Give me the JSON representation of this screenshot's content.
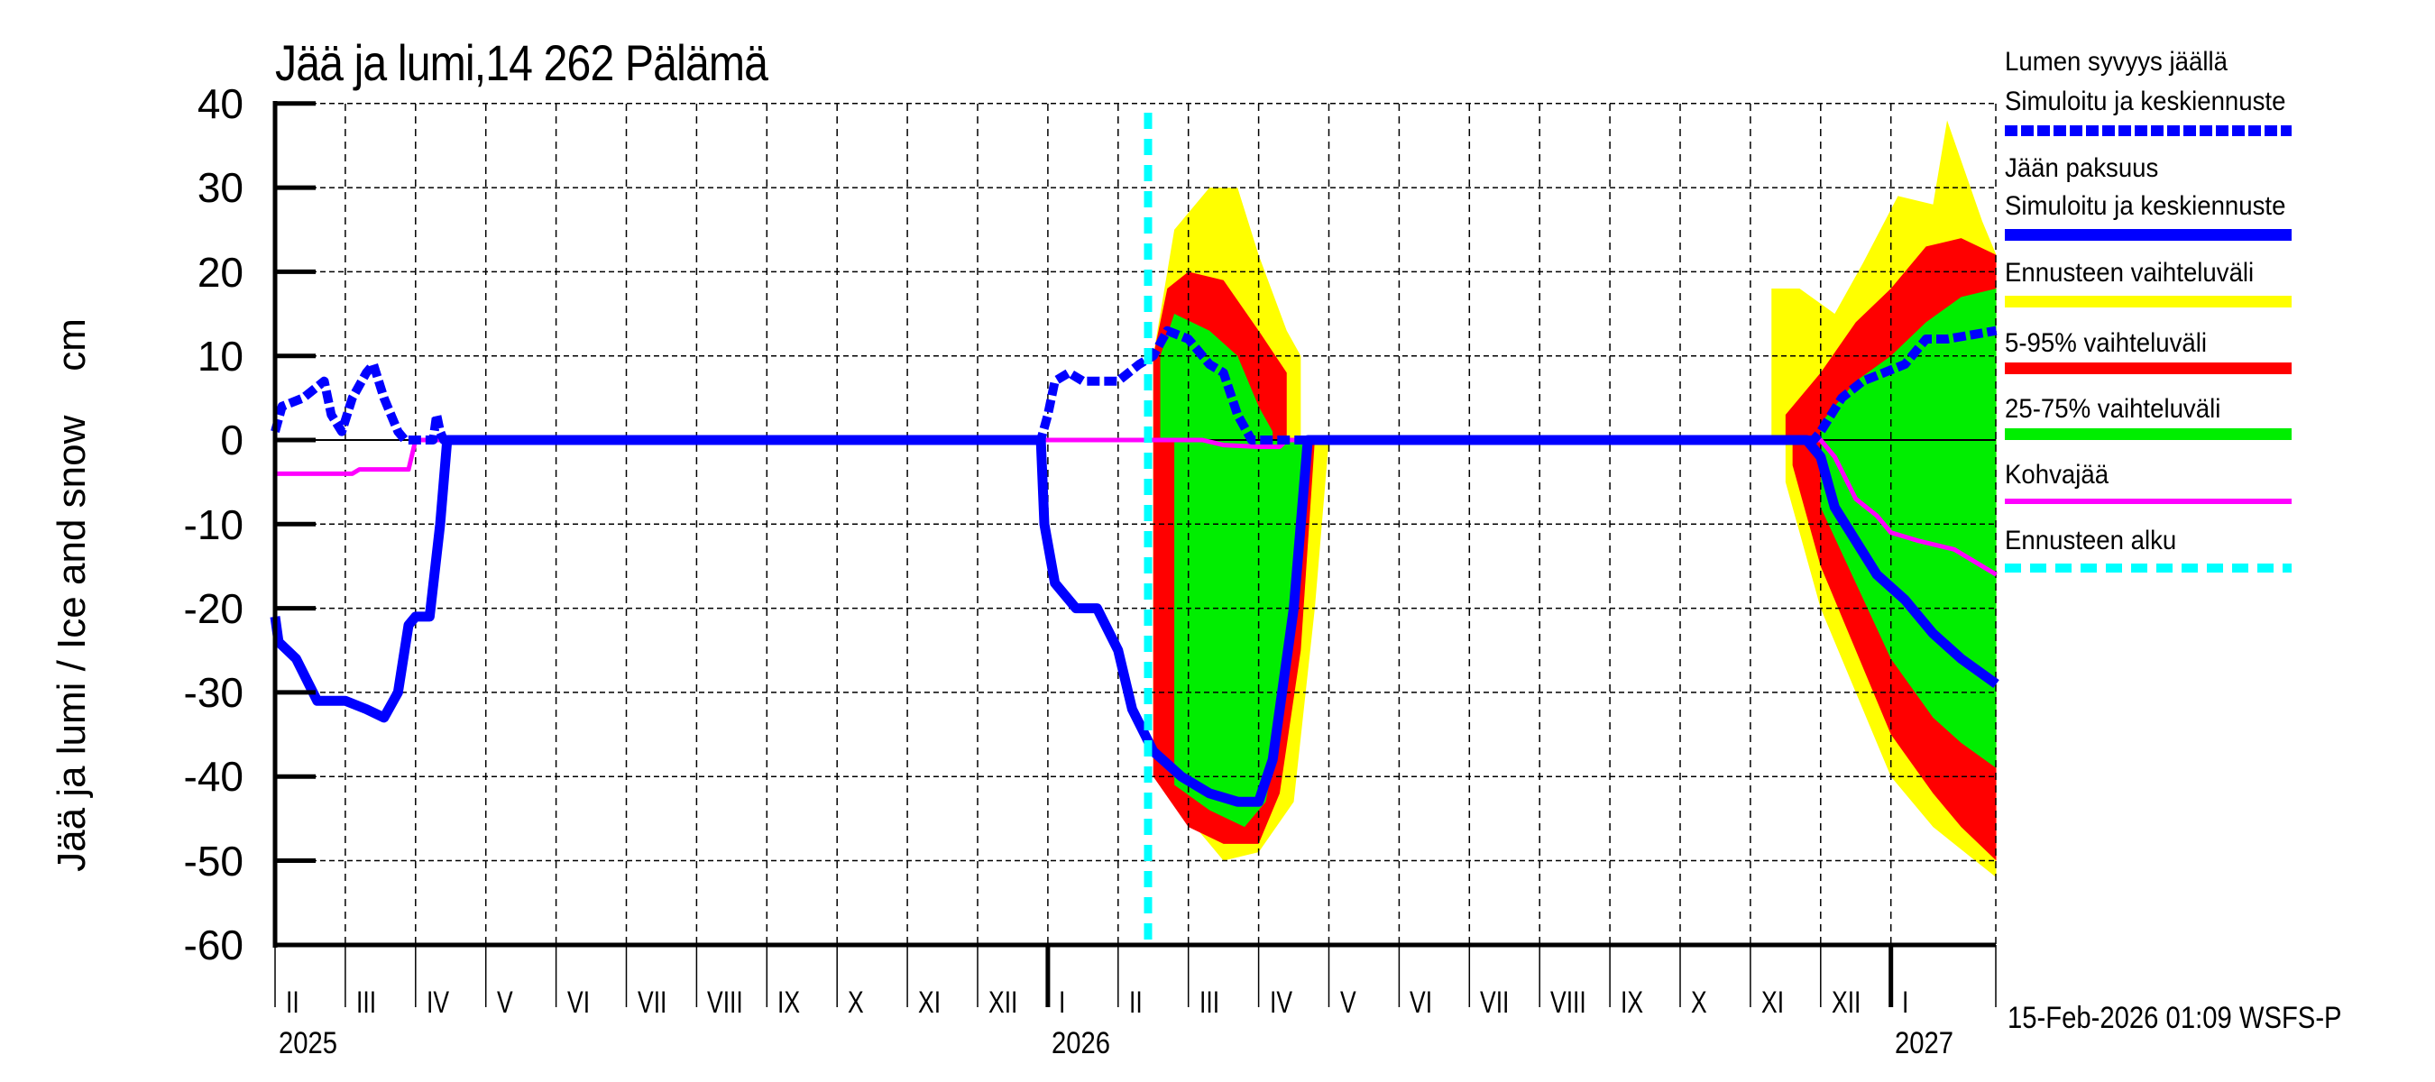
{
  "title": "Jää ja lumi,14 262 Pälämä",
  "y_axis_label": "Jää ja lumi / Ice and snow    cm",
  "timestamp": "15-Feb-2026 01:09 WSFS-P",
  "y_ticks": [
    "40",
    "30",
    "20",
    "10",
    "0",
    "-10",
    "-20",
    "-30",
    "-40",
    "-50",
    "-60"
  ],
  "months": [
    {
      "label": "II",
      "m": 0
    },
    {
      "label": "III",
      "m": 1
    },
    {
      "label": "IV",
      "m": 2
    },
    {
      "label": "V",
      "m": 3
    },
    {
      "label": "VI",
      "m": 4
    },
    {
      "label": "VII",
      "m": 5
    },
    {
      "label": "VIII",
      "m": 6
    },
    {
      "label": "IX",
      "m": 7
    },
    {
      "label": "X",
      "m": 8
    },
    {
      "label": "XI",
      "m": 9
    },
    {
      "label": "XII",
      "m": 10
    },
    {
      "label": "I",
      "m": 11
    },
    {
      "label": "II",
      "m": 12
    },
    {
      "label": "III",
      "m": 13
    },
    {
      "label": "IV",
      "m": 14
    },
    {
      "label": "V",
      "m": 15
    },
    {
      "label": "VI",
      "m": 16
    },
    {
      "label": "VII",
      "m": 17
    },
    {
      "label": "VIII",
      "m": 18
    },
    {
      "label": "IX",
      "m": 19
    },
    {
      "label": "X",
      "m": 20
    },
    {
      "label": "XI",
      "m": 21
    },
    {
      "label": "XII",
      "m": 22
    },
    {
      "label": "I",
      "m": 23
    }
  ],
  "years": [
    {
      "label": "2025",
      "m": 0
    },
    {
      "label": "2026",
      "m": 11
    },
    {
      "label": "2027",
      "m": 23
    }
  ],
  "legend": {
    "snow_title": "Lumen syvyys jäällä",
    "snow_sub": "Simuloitu ja keskiennuste",
    "ice_title": "Jään paksuus",
    "ice_sub": "Simuloitu ja keskiennuste",
    "range_all": "Ennusteen vaihteluväli",
    "range_5_95": "5-95% vaihteluväli",
    "range_25_75": "25-75% vaihteluväli",
    "slush": "Kohvajää",
    "forecast_start": "Ennusteen alku"
  },
  "colors": {
    "snow": "#0000ff",
    "ice": "#0000ff",
    "range_all": "#ffff00",
    "range_5_95": "#ff0000",
    "range_25_75": "#00ee00",
    "slush": "#ff00ff",
    "forecast_start": "#00ffff",
    "grid": "#000000"
  },
  "chart_data": {
    "type": "area",
    "title": "Jää ja lumi,14 262 Pälämä",
    "xlabel": "",
    "ylabel": "Jää ja lumi / Ice and snow cm",
    "ylim": [
      -60,
      40
    ],
    "xlim": [
      "2025-02-01",
      "2027-02-15"
    ],
    "grid": true,
    "legend_position": "right",
    "forecast_start": "2026-02-15",
    "note": "Snow depth plotted positive, ice thickness plotted negative; m = months since 2025-02-01",
    "series": [
      {
        "name": "Lumen syvyys jäällä (snow depth, simulated & mean forecast)",
        "style": "dashed blue",
        "points": [
          [
            0,
            1
          ],
          [
            0.1,
            4
          ],
          [
            0.4,
            5
          ],
          [
            0.7,
            7
          ],
          [
            0.8,
            3
          ],
          [
            0.95,
            1
          ],
          [
            1.1,
            5
          ],
          [
            1.3,
            8
          ],
          [
            1.4,
            9
          ],
          [
            1.55,
            5
          ],
          [
            1.75,
            1
          ],
          [
            1.85,
            0
          ],
          [
            2.25,
            0
          ],
          [
            2.3,
            3
          ],
          [
            2.35,
            1
          ],
          [
            2.4,
            0
          ],
          [
            10.9,
            0
          ],
          [
            11.0,
            3
          ],
          [
            11.1,
            7
          ],
          [
            11.3,
            8
          ],
          [
            11.5,
            7
          ],
          [
            12.0,
            7
          ],
          [
            12.3,
            9
          ],
          [
            12.5,
            10
          ],
          [
            12.7,
            13
          ],
          [
            13.0,
            12
          ],
          [
            13.3,
            9
          ],
          [
            13.5,
            8
          ],
          [
            13.7,
            3
          ],
          [
            13.9,
            0
          ],
          [
            21.5,
            0
          ],
          [
            21.9,
            0
          ],
          [
            22.0,
            1
          ],
          [
            22.3,
            5
          ],
          [
            22.6,
            7
          ],
          [
            22.9,
            8
          ],
          [
            23.2,
            9
          ],
          [
            23.5,
            12
          ],
          [
            23.8,
            12
          ],
          [
            24.5,
            13
          ]
        ]
      },
      {
        "name": "Jään paksuus (ice thickness, simulated & mean forecast)",
        "style": "solid blue",
        "points": [
          [
            0,
            -21
          ],
          [
            0.05,
            -24
          ],
          [
            0.3,
            -26
          ],
          [
            0.6,
            -31
          ],
          [
            1.0,
            -31
          ],
          [
            1.3,
            -32
          ],
          [
            1.55,
            -33
          ],
          [
            1.75,
            -30
          ],
          [
            1.9,
            -22
          ],
          [
            2.0,
            -21
          ],
          [
            2.2,
            -21
          ],
          [
            2.35,
            -10
          ],
          [
            2.45,
            0
          ],
          [
            10.9,
            0
          ],
          [
            10.95,
            -10
          ],
          [
            11.1,
            -17
          ],
          [
            11.4,
            -20
          ],
          [
            11.7,
            -20
          ],
          [
            12.0,
            -25
          ],
          [
            12.2,
            -32
          ],
          [
            12.5,
            -37
          ],
          [
            12.9,
            -40
          ],
          [
            13.3,
            -42
          ],
          [
            13.7,
            -43
          ],
          [
            14.0,
            -43
          ],
          [
            14.2,
            -38
          ],
          [
            14.5,
            -20
          ],
          [
            14.7,
            0
          ],
          [
            21.5,
            0
          ],
          [
            21.8,
            0
          ],
          [
            22.0,
            -2
          ],
          [
            22.2,
            -8
          ],
          [
            22.5,
            -12
          ],
          [
            22.8,
            -16
          ],
          [
            23.2,
            -19
          ],
          [
            23.6,
            -23
          ],
          [
            24.0,
            -26
          ],
          [
            24.5,
            -29
          ]
        ]
      },
      {
        "name": "Kohvajää (slush ice)",
        "style": "solid magenta",
        "points": [
          [
            0,
            -4
          ],
          [
            1.1,
            -4
          ],
          [
            1.2,
            -3.5
          ],
          [
            1.9,
            -3.5
          ],
          [
            2.0,
            0
          ],
          [
            13.2,
            0
          ],
          [
            13.5,
            -0.6
          ],
          [
            14.0,
            -0.8
          ],
          [
            14.3,
            -0.8
          ],
          [
            14.4,
            0
          ],
          [
            22.0,
            0
          ],
          [
            22.2,
            -2
          ],
          [
            22.5,
            -7
          ],
          [
            22.8,
            -9
          ],
          [
            23.0,
            -11
          ],
          [
            23.4,
            -12
          ],
          [
            23.9,
            -13
          ],
          [
            24.3,
            -15
          ],
          [
            24.5,
            -16
          ]
        ]
      },
      {
        "name": "Ennusteen vaihteluväli (full range)",
        "style": "yellow band",
        "snow_upper": [
          [
            12.5,
            10
          ],
          [
            12.8,
            25
          ],
          [
            13.3,
            30
          ],
          [
            13.7,
            30
          ],
          [
            14.0,
            22
          ],
          [
            14.4,
            13
          ],
          [
            14.6,
            10
          ],
          [
            21.3,
            18
          ],
          [
            21.7,
            18
          ],
          [
            22.2,
            15
          ],
          [
            22.6,
            21
          ],
          [
            23.1,
            29
          ],
          [
            23.6,
            28
          ],
          [
            23.8,
            38
          ],
          [
            24.3,
            26
          ],
          [
            24.5,
            22
          ]
        ],
        "ice_lower": [
          [
            12.5,
            -38
          ],
          [
            13.0,
            -45
          ],
          [
            13.5,
            -50
          ],
          [
            14.0,
            -49
          ],
          [
            14.5,
            -43
          ],
          [
            14.8,
            -20
          ],
          [
            15.0,
            0
          ],
          [
            21.5,
            -5
          ],
          [
            22.0,
            -20
          ],
          [
            22.5,
            -30
          ],
          [
            23.0,
            -40
          ],
          [
            23.6,
            -46
          ],
          [
            24.2,
            -50
          ],
          [
            24.5,
            -52
          ]
        ]
      },
      {
        "name": "5-95% vaihteluväli",
        "style": "red band",
        "snow_upper": [
          [
            12.5,
            10
          ],
          [
            12.7,
            18
          ],
          [
            13.0,
            20
          ],
          [
            13.5,
            19
          ],
          [
            14.0,
            13
          ],
          [
            14.4,
            8
          ],
          [
            21.5,
            3
          ],
          [
            22.0,
            8
          ],
          [
            22.5,
            14
          ],
          [
            23.0,
            18
          ],
          [
            23.5,
            23
          ],
          [
            24.0,
            24
          ],
          [
            24.5,
            22
          ]
        ],
        "ice_lower": [
          [
            12.5,
            -40
          ],
          [
            13.0,
            -46
          ],
          [
            13.5,
            -48
          ],
          [
            14.0,
            -48
          ],
          [
            14.3,
            -42
          ],
          [
            14.6,
            -25
          ],
          [
            14.8,
            0
          ],
          [
            21.6,
            -3
          ],
          [
            22.0,
            -15
          ],
          [
            22.5,
            -25
          ],
          [
            23.0,
            -35
          ],
          [
            23.6,
            -42
          ],
          [
            24.0,
            -46
          ],
          [
            24.5,
            -50
          ]
        ]
      },
      {
        "name": "25-75% vaihteluväli",
        "style": "green band",
        "snow_upper": [
          [
            12.6,
            10
          ],
          [
            12.8,
            15
          ],
          [
            13.3,
            13
          ],
          [
            13.7,
            10
          ],
          [
            14.0,
            4
          ],
          [
            14.2,
            1
          ],
          [
            22.0,
            2
          ],
          [
            22.5,
            7
          ],
          [
            23.0,
            10
          ],
          [
            23.5,
            14
          ],
          [
            24.0,
            17
          ],
          [
            24.5,
            18
          ]
        ],
        "ice_lower": [
          [
            12.8,
            -41
          ],
          [
            13.3,
            -44
          ],
          [
            13.8,
            -46
          ],
          [
            14.1,
            -43
          ],
          [
            14.4,
            -30
          ],
          [
            14.6,
            -10
          ],
          [
            14.7,
            0
          ],
          [
            22.0,
            -8
          ],
          [
            22.5,
            -17
          ],
          [
            23.0,
            -26
          ],
          [
            23.6,
            -33
          ],
          [
            24.0,
            -36
          ],
          [
            24.5,
            -39
          ]
        ]
      }
    ]
  }
}
